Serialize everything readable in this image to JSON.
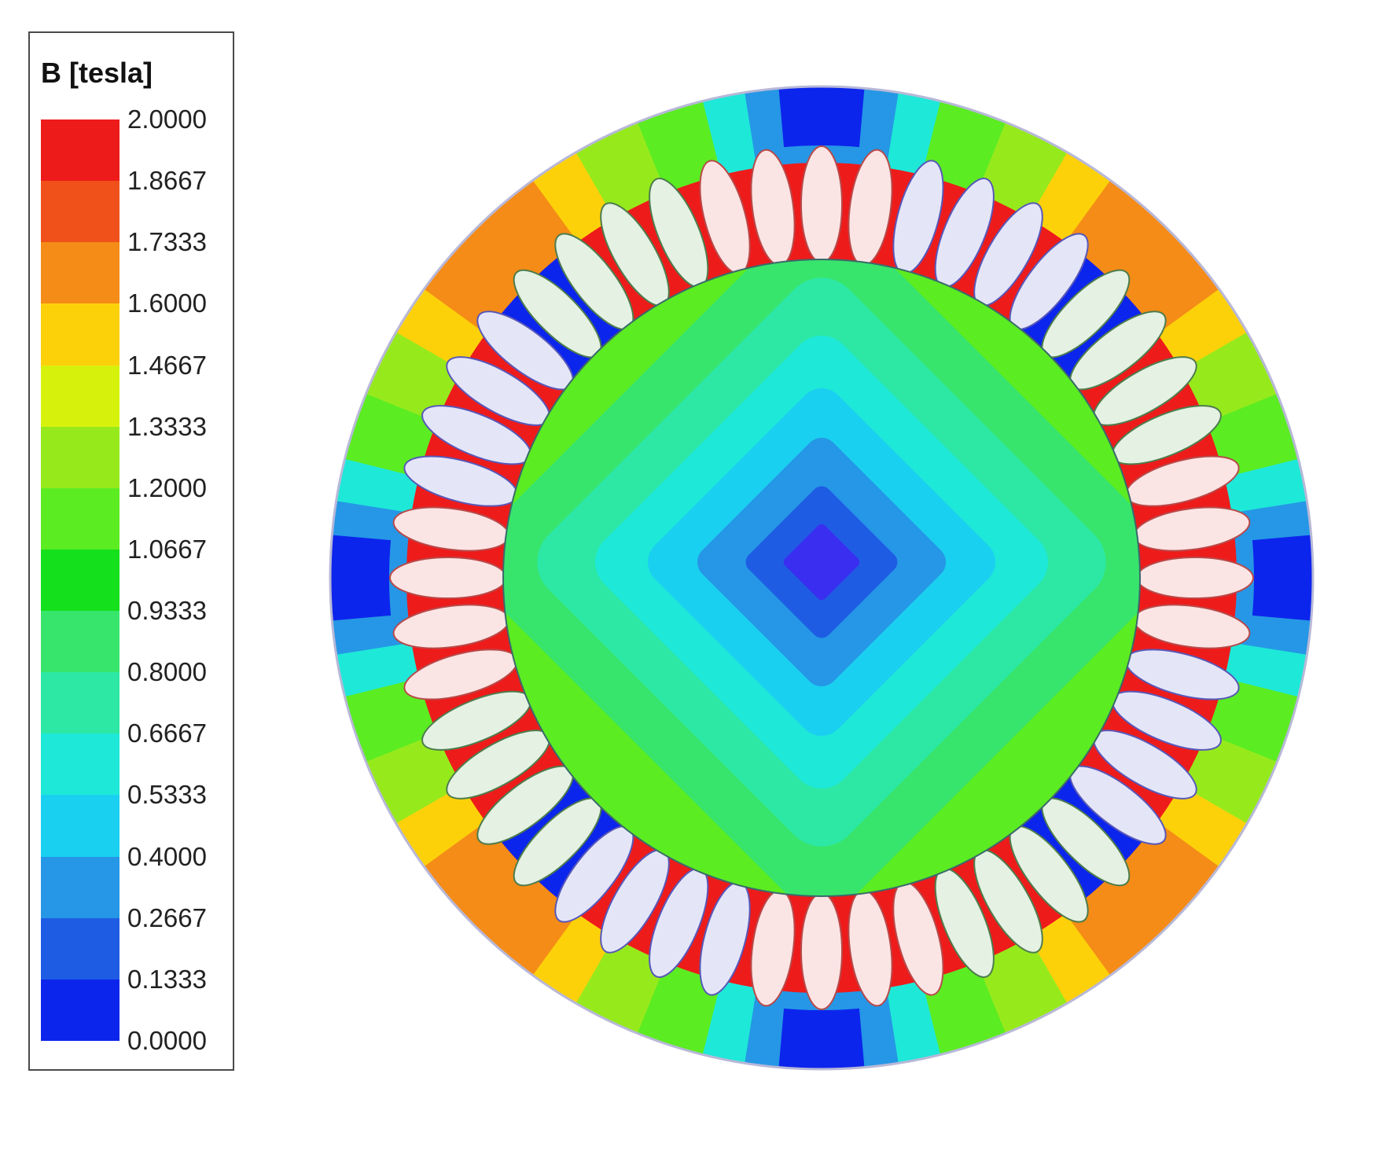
{
  "legend": {
    "title": "B [tesla]",
    "ticks": [
      "2.0000",
      "1.8667",
      "1.7333",
      "1.6000",
      "1.4667",
      "1.3333",
      "1.2000",
      "1.0667",
      "0.9333",
      "0.8000",
      "0.6667",
      "0.5333",
      "0.4000",
      "0.2667",
      "0.1333",
      "0.0000"
    ],
    "colors": [
      "#ee1b1b",
      "#f0501a",
      "#f48c17",
      "#fdd10a",
      "#d6f20c",
      "#96ea1c",
      "#5bec22",
      "#14e01c",
      "#38e56c",
      "#2ce8a4",
      "#1ee8d8",
      "#1ad0f0",
      "#2597e6",
      "#1f5ce4",
      "#0c25ec"
    ]
  },
  "plot": {
    "colors": {
      "outline": "#b8b8d8",
      "coil_pink": "#fbe4e4",
      "coil_blue": "#e4e6f8",
      "coil_green": "#e5f1e3",
      "stroke_pink": "#b84a4a",
      "stroke_blue": "#5858b8",
      "stroke_green": "#4d7c4d",
      "tooth": "#ee1b1b",
      "rotor_core": "#5b2cf0"
    }
  }
}
